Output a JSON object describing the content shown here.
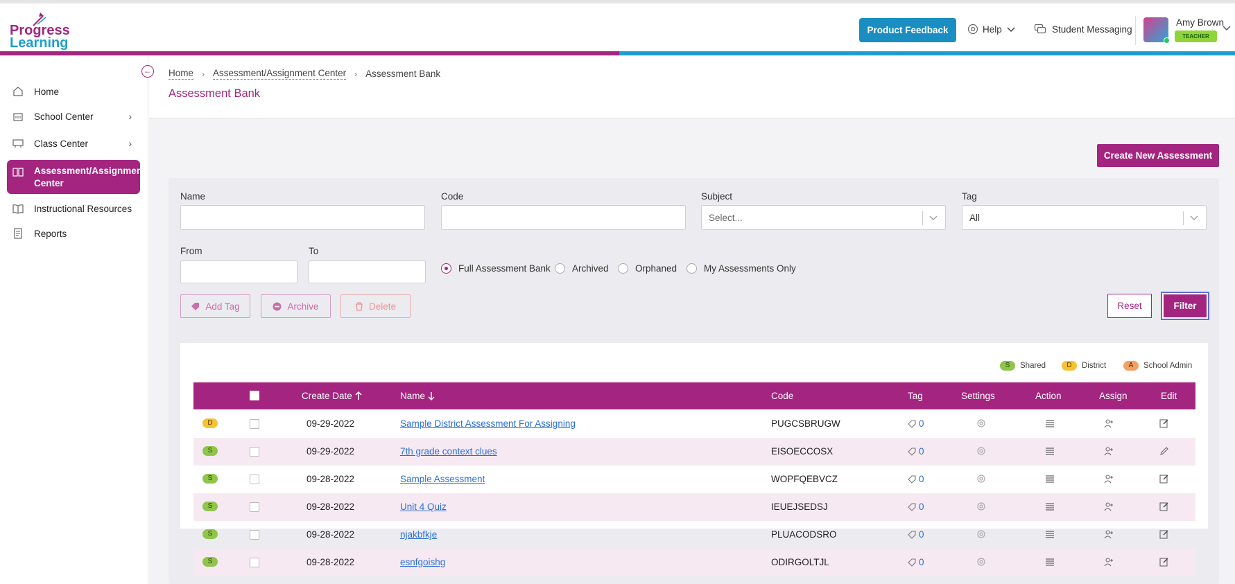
{
  "brand": {
    "line1": "Progress",
    "line2": "Learning"
  },
  "header": {
    "feedback_label": "Product Feedback",
    "help_label": "Help",
    "messaging_label": "Student Messaging",
    "user_name": "Amy Brown",
    "user_role": "TEACHER"
  },
  "sidebar": {
    "items": [
      {
        "label": "Home",
        "icon": "home-icon"
      },
      {
        "label": "School Center",
        "icon": "building-icon"
      },
      {
        "label": "Class Center",
        "icon": "classroom-icon"
      },
      {
        "label": "Assessment/Assignment Center",
        "icon": "book-icon"
      },
      {
        "label": "Instructional Resources",
        "icon": "open-book-icon"
      },
      {
        "label": "Reports",
        "icon": "report-icon"
      }
    ]
  },
  "breadcrumb": {
    "home": "Home",
    "center": "Assessment/Assignment Center",
    "current": "Assessment Bank"
  },
  "page_title": "Assessment Bank",
  "create_label": "Create New Assessment",
  "filters": {
    "name_label": "Name",
    "name_value": "",
    "code_label": "Code",
    "code_value": "",
    "subject_label": "Subject",
    "subject_placeholder": "Select...",
    "tag_label": "Tag",
    "tag_value": "All",
    "from_label": "From",
    "to_label": "To",
    "radios": [
      "Full Assessment Bank",
      "Archived",
      "Orphaned",
      "My Assessments Only"
    ],
    "selected_radio": "Full Assessment Bank"
  },
  "actions": {
    "add_tag": "Add Tag",
    "archive": "Archive",
    "delete": "Delete",
    "reset": "Reset",
    "filter": "Filter"
  },
  "legend": [
    {
      "code": "S",
      "label": "Shared"
    },
    {
      "code": "D",
      "label": "District"
    },
    {
      "code": "A",
      "label": "School Admin"
    }
  ],
  "table": {
    "headers": {
      "create_date": "Create Date",
      "name": "Name",
      "code": "Code",
      "tag": "Tag",
      "settings": "Settings",
      "action": "Action",
      "assign": "Assign",
      "edit": "Edit"
    },
    "rows": [
      {
        "badge": "D",
        "date": "09-29-2022",
        "name": "Sample District Assessment For Assigning",
        "code": "PUGCSBRUGW",
        "tags": "0"
      },
      {
        "badge": "S",
        "date": "09-29-2022",
        "name": "7th grade context clues",
        "code": "EISOECCOSX",
        "tags": "0"
      },
      {
        "badge": "S",
        "date": "09-28-2022",
        "name": "Sample Assessment",
        "code": "WOPFQEBVCZ",
        "tags": "0"
      },
      {
        "badge": "S",
        "date": "09-28-2022",
        "name": "Unit 4 Quiz",
        "code": "IEUEJSEDSJ",
        "tags": "0"
      },
      {
        "badge": "S",
        "date": "09-28-2022",
        "name": "njakbfkje",
        "code": "PLUACODSRO",
        "tags": "0"
      },
      {
        "badge": "S",
        "date": "09-28-2022",
        "name": "esnfgoishg",
        "code": "ODIRGOLTJL",
        "tags": "0"
      }
    ]
  }
}
